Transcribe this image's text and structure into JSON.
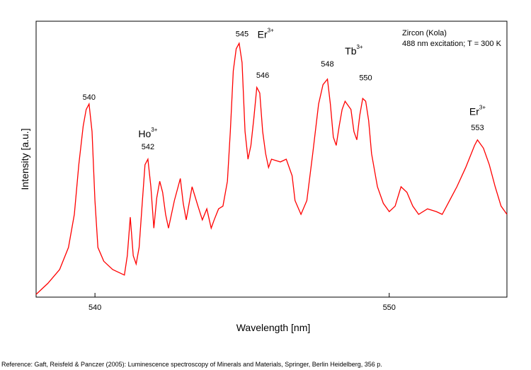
{
  "chart_data": {
    "type": "line",
    "xlabel": "Wavelength [nm]",
    "ylabel": "Intensity [a.u.]",
    "xlim": [
      538.0,
      554.0
    ],
    "ylim": [
      0,
      1.0
    ],
    "x_ticks": [
      540,
      550
    ],
    "x_tick_labels": [
      "540",
      "550"
    ],
    "y_ticks": [],
    "grid": false,
    "legend": "none",
    "line_color": "#ff0000",
    "info": [
      "Zircon (Kola)",
      "488 nm excitation; T = 300 K"
    ],
    "peak_labels": [
      {
        "text": "540",
        "x": 539.8,
        "y": 0.7
      },
      {
        "text": "542",
        "x": 541.8,
        "y": 0.52
      },
      {
        "text": "545",
        "x": 545.0,
        "y": 0.93
      },
      {
        "text": "546",
        "x": 545.7,
        "y": 0.78
      },
      {
        "text": "548",
        "x": 547.9,
        "y": 0.82
      },
      {
        "text": "550",
        "x": 549.2,
        "y": 0.77
      },
      {
        "text": "553",
        "x": 553.0,
        "y": 0.59
      }
    ],
    "ion_labels": [
      {
        "base": "Ho",
        "sup": "3+",
        "x": 541.8,
        "y": 0.58
      },
      {
        "base": "Er",
        "sup": "3+",
        "x": 545.8,
        "y": 0.94
      },
      {
        "base": "Tb",
        "sup": "3+",
        "x": 548.8,
        "y": 0.88
      },
      {
        "base": "Er",
        "sup": "3+",
        "x": 553.0,
        "y": 0.66
      }
    ],
    "series": [
      {
        "color": "#ff0000",
        "x": [
          538.0,
          538.4,
          538.8,
          539.1,
          539.3,
          539.45,
          539.6,
          539.7,
          539.8,
          539.9,
          540.0,
          540.1,
          540.3,
          540.6,
          541.0,
          541.1,
          541.2,
          541.3,
          541.4,
          541.5,
          541.6,
          541.7,
          541.8,
          541.9,
          542.0,
          542.1,
          542.2,
          542.3,
          542.4,
          542.5,
          542.7,
          542.9,
          543.0,
          543.1,
          543.3,
          543.5,
          543.65,
          543.8,
          543.95,
          544.05,
          544.2,
          544.35,
          544.5,
          544.6,
          544.7,
          544.8,
          544.9,
          545.0,
          545.1,
          545.2,
          545.3,
          545.4,
          545.5,
          545.6,
          545.7,
          545.8,
          545.9,
          546.0,
          546.3,
          546.5,
          546.7,
          546.8,
          547.0,
          547.2,
          547.4,
          547.6,
          547.75,
          547.9,
          548.0,
          548.1,
          548.2,
          548.3,
          548.4,
          548.5,
          548.7,
          548.8,
          548.9,
          549.0,
          549.1,
          549.2,
          549.3,
          549.4,
          549.6,
          549.8,
          550.0,
          550.2,
          550.4,
          550.6,
          550.8,
          551.0,
          551.3,
          551.6,
          551.8,
          552.0,
          552.3,
          552.6,
          552.9,
          553.0,
          553.2,
          553.4,
          553.6,
          553.8,
          554.0
        ],
        "y": [
          0.01,
          0.05,
          0.1,
          0.18,
          0.3,
          0.48,
          0.62,
          0.68,
          0.7,
          0.6,
          0.35,
          0.18,
          0.13,
          0.1,
          0.08,
          0.15,
          0.29,
          0.15,
          0.12,
          0.18,
          0.33,
          0.48,
          0.5,
          0.4,
          0.25,
          0.36,
          0.42,
          0.38,
          0.3,
          0.25,
          0.35,
          0.43,
          0.34,
          0.28,
          0.4,
          0.33,
          0.28,
          0.32,
          0.25,
          0.28,
          0.32,
          0.33,
          0.42,
          0.6,
          0.82,
          0.9,
          0.92,
          0.85,
          0.6,
          0.5,
          0.55,
          0.65,
          0.76,
          0.74,
          0.6,
          0.52,
          0.47,
          0.5,
          0.49,
          0.5,
          0.44,
          0.35,
          0.3,
          0.35,
          0.52,
          0.7,
          0.77,
          0.79,
          0.7,
          0.58,
          0.55,
          0.62,
          0.68,
          0.71,
          0.68,
          0.6,
          0.57,
          0.66,
          0.72,
          0.71,
          0.64,
          0.52,
          0.4,
          0.34,
          0.31,
          0.33,
          0.4,
          0.38,
          0.33,
          0.3,
          0.32,
          0.31,
          0.3,
          0.34,
          0.4,
          0.47,
          0.55,
          0.57,
          0.54,
          0.48,
          0.4,
          0.33,
          0.3
        ]
      }
    ]
  },
  "reference": "Reference: Gaft, Reisfeld & Panczer (2005): Luminescence spectroscopy of Minerals and Materials, Springer, Berlin Heidelberg, 356 p."
}
